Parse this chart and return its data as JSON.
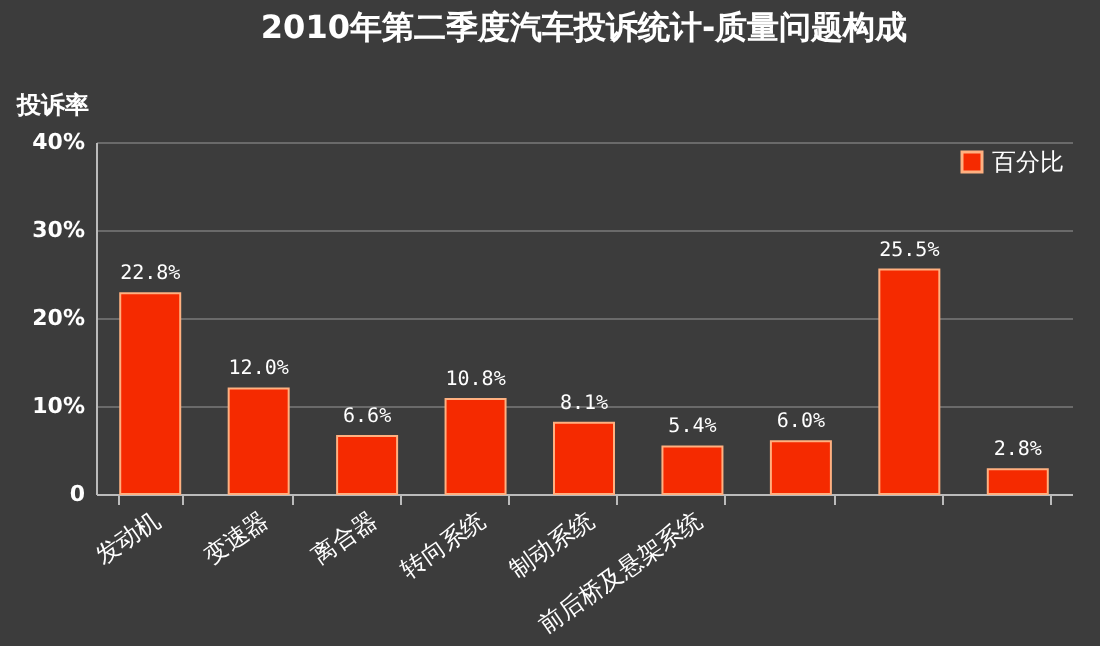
{
  "chart_data": {
    "type": "bar",
    "title": "2010年第二季度汽车投诉统计-质量问题构成",
    "ylabel": "投诉率",
    "categories": [
      "发动机",
      "变速器",
      "离合器",
      "转向系统",
      "制动系统",
      "前后桥及悬架系统",
      null,
      null,
      null
    ],
    "series": [
      {
        "name": "百分比",
        "color": "#f52a00",
        "values": [
          22.8,
          12.0,
          6.6,
          10.8,
          8.1,
          5.4,
          6.0,
          25.5,
          2.8
        ],
        "value_labels": [
          "22.8%",
          "12.0%",
          "6.6%",
          "10.8%",
          "8.1%",
          "5.4%",
          "6.0%",
          "25.5%",
          "2.8%"
        ]
      }
    ],
    "ylim": [
      0,
      40
    ],
    "yticks": [
      0,
      {
        "value": 10,
        "label": "10%"
      },
      {
        "value": 20,
        "label": "20%"
      },
      {
        "value": 30,
        "label": "30%"
      },
      {
        "value": 40,
        "label": "40%"
      }
    ],
    "grid": "y",
    "legend": "top right"
  }
}
